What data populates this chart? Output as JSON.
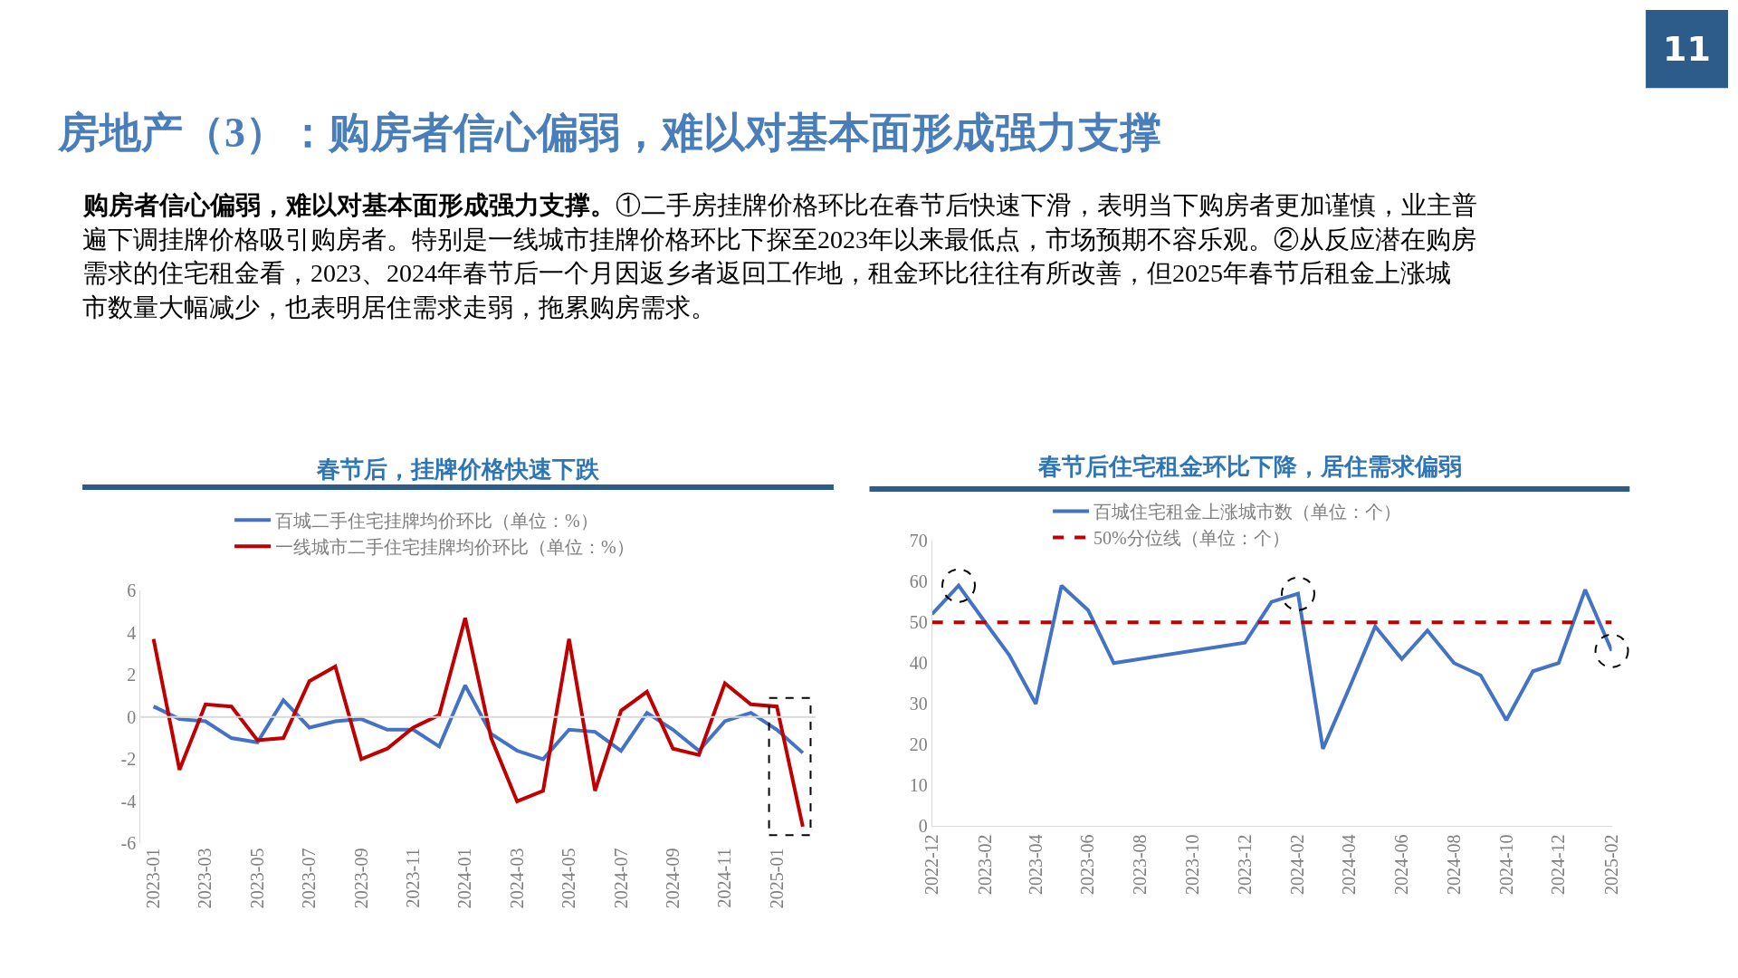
{
  "chart_data": [
    {
      "type": "other",
      "title": "房地产（3）：购房者信心偏弱，难以对基本面形成强力支撑",
      "annotations": [
        "11",
        "购房者信心偏弱，难以对基本面形成强力支撑。",
        "①二手房挂牌价格环比在春节后快速下滑，表明当下购房者更加谨慎，业主普遍下调挂牌价格吸引购房者。特别是一线城市挂牌价格环比下探至2023年以来最低点，市场预期不容乐观。②从反应潜在购房需求的住宅租金看，2023、2024年春节后一个月因返乡者返回工作地，租金环比往往有所改善，但2025年春节后租金上涨城市数量大幅减少，也表明居住需求走弱，拖累购房需求。"
      ]
    },
    {
      "type": "line",
      "title": "春节后，挂牌价格快速下跌",
      "categories": [
        "2023-01",
        null,
        "2023-03",
        null,
        "2023-05",
        null,
        "2023-07",
        null,
        "2023-09",
        null,
        "2023-11",
        null,
        "2024-01",
        null,
        "2024-03",
        null,
        "2024-05",
        null,
        "2024-07",
        null,
        "2024-09",
        null,
        "2024-11",
        null,
        "2025-01",
        null
      ],
      "series": [
        {
          "name": "百城二手住宅挂牌均价环比（单位：%）",
          "color": "#4472c4",
          "values": [
            0.5,
            -0.1,
            -0.2,
            -1.0,
            -1.2,
            0.8,
            -0.5,
            -0.2,
            -0.1,
            -0.6,
            -0.6,
            -1.4,
            1.5,
            -0.8,
            -1.6,
            -2.0,
            -0.6,
            -0.7,
            -1.6,
            0.2,
            -0.6,
            -1.6,
            -0.2,
            0.2,
            -0.6,
            -1.7
          ]
        },
        {
          "name": "一线城市二手住宅挂牌均价环比（单位：%）",
          "color": "#c00000",
          "values": [
            3.7,
            -2.5,
            0.6,
            0.5,
            -1.1,
            -1.0,
            1.7,
            2.4,
            -2.0,
            -1.5,
            -0.5,
            0.1,
            4.7,
            -1.0,
            -4.0,
            -3.5,
            3.7,
            -3.5,
            0.3,
            1.2,
            -1.5,
            -1.8,
            1.6,
            0.6,
            0.5,
            -5.2
          ]
        }
      ],
      "ylim": [
        -6,
        6
      ],
      "yticks": [
        -6,
        -4,
        -2,
        0,
        2,
        4,
        6
      ],
      "ref_lines": [
        {
          "axis": "y",
          "value": 0,
          "color": "#d9d9d9",
          "line_style": "solid"
        }
      ],
      "legend": "top"
    },
    {
      "type": "line",
      "title": "春节后住宅租金环比下降，居住需求偏弱",
      "x": [
        "2022-12",
        "2023-01",
        "2023-02",
        "2023-03",
        "2023-04",
        "2023-05",
        "2023-06",
        "2023-07",
        "2023-12",
        "2024-01",
        "2024-02",
        "2024-03",
        "2024-04",
        "2024-05",
        "2024-06",
        "2024-07",
        "2024-08",
        "2024-09",
        "2024-10",
        "2024-11",
        "2024-12",
        "2025-01",
        "2025-02"
      ],
      "series": [
        {
          "name": "百城住宅租金上涨城市数（单位：个）",
          "color": "#4472c4",
          "values": [
            52,
            59,
            50,
            42,
            30,
            59,
            53,
            40,
            45,
            55,
            57,
            19,
            34,
            49,
            41,
            48,
            40,
            37,
            26,
            38,
            40,
            58,
            43
          ]
        }
      ],
      "xlim": [
        "2022-12",
        "2025-02"
      ],
      "xticks": [
        "2022-12",
        "2023-02",
        "2023-04",
        "2023-06",
        "2023-08",
        "2023-10",
        "2023-12",
        "2024-02",
        "2024-04",
        "2024-06",
        "2024-08",
        "2024-10",
        "2024-12",
        "2025-02"
      ],
      "ylim": [
        0,
        70
      ],
      "yticks": [
        0,
        10,
        20,
        30,
        40,
        50,
        60,
        70
      ],
      "ref_lines": [
        {
          "axis": "y",
          "value": 50,
          "label": "50%分位线（单位：个）",
          "color": "#c00000",
          "line_style": "dashed"
        }
      ],
      "legend": "top"
    }
  ]
}
